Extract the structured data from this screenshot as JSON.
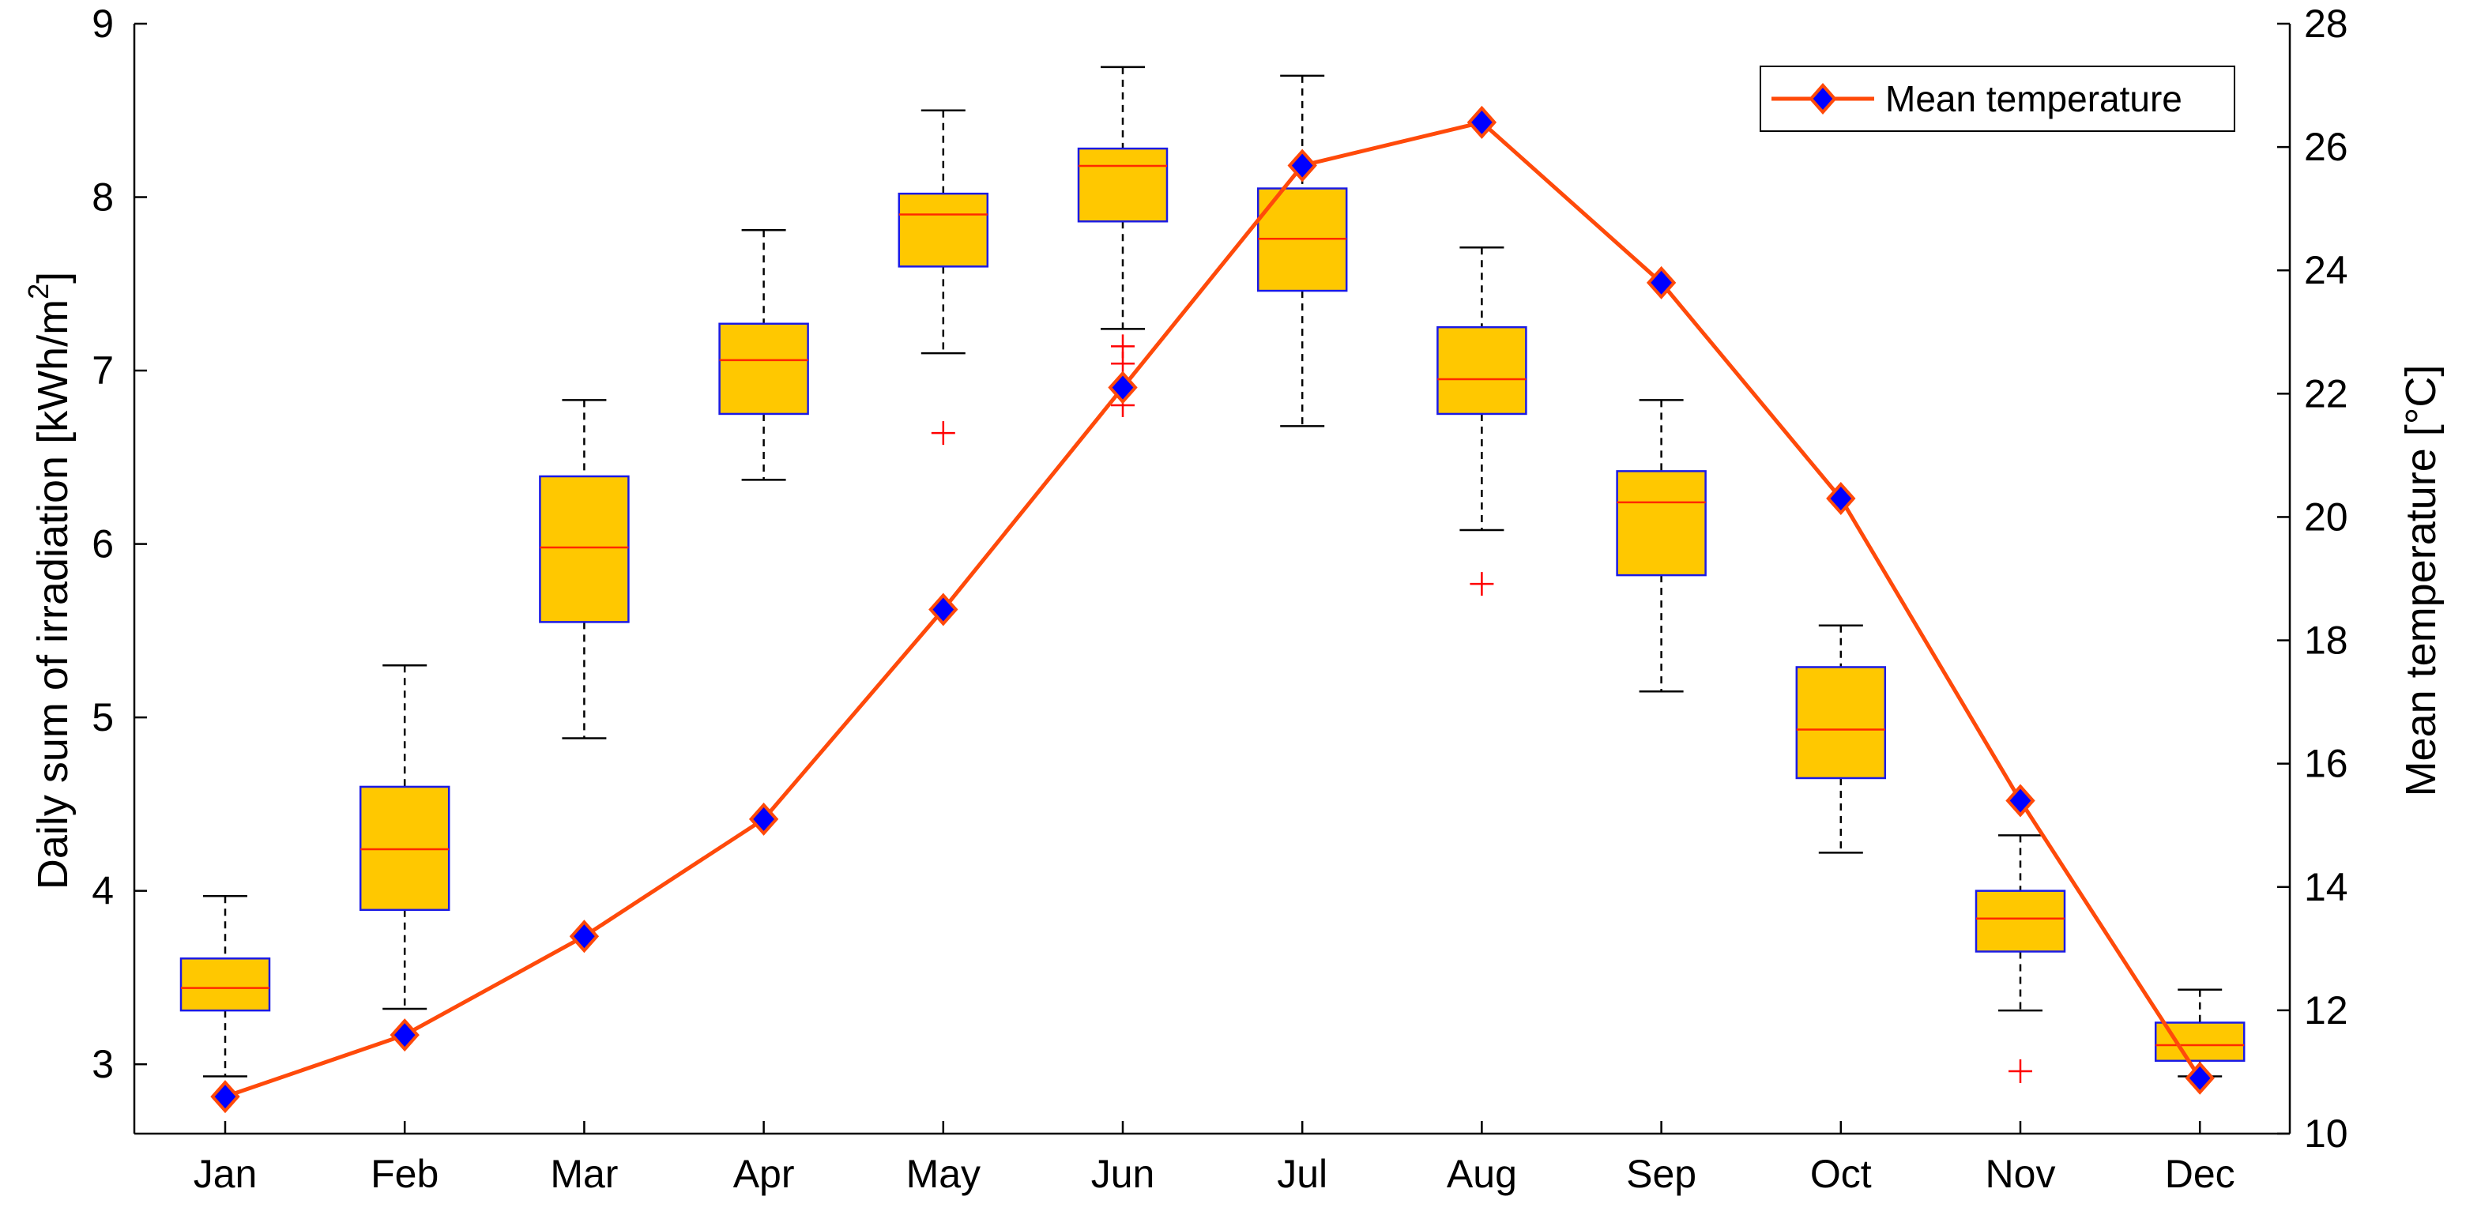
{
  "chart_data": {
    "type": "box+line",
    "categories": [
      "Jan",
      "Feb",
      "Mar",
      "Apr",
      "May",
      "Jun",
      "Jul",
      "Aug",
      "Sep",
      "Oct",
      "Nov",
      "Dec"
    ],
    "left_axis": {
      "label_prefix": "Daily sum of irradiation [kWh/m",
      "label_sup": "2",
      "label_suffix": "]",
      "ylim": [
        2.6,
        9.0
      ],
      "ticks": [
        3,
        4,
        5,
        6,
        7,
        8,
        9
      ]
    },
    "right_axis": {
      "label": "Mean temperature [°C]",
      "ylim": [
        10,
        28
      ],
      "ticks": [
        10,
        12,
        14,
        16,
        18,
        20,
        22,
        24,
        26,
        28
      ]
    },
    "boxes": [
      {
        "month": "Jan",
        "whisker_low": 2.93,
        "q1": 3.31,
        "median": 3.44,
        "q3": 3.61,
        "whisker_high": 3.97,
        "outliers": []
      },
      {
        "month": "Feb",
        "whisker_low": 3.32,
        "q1": 3.89,
        "median": 4.24,
        "q3": 4.6,
        "whisker_high": 5.3,
        "outliers": []
      },
      {
        "month": "Mar",
        "whisker_low": 4.88,
        "q1": 5.55,
        "median": 5.98,
        "q3": 6.39,
        "whisker_high": 6.83,
        "outliers": []
      },
      {
        "month": "Apr",
        "whisker_low": 6.37,
        "q1": 6.75,
        "median": 7.06,
        "q3": 7.27,
        "whisker_high": 7.81,
        "outliers": []
      },
      {
        "month": "May",
        "whisker_low": 7.1,
        "q1": 7.6,
        "median": 7.9,
        "q3": 8.02,
        "whisker_high": 8.5,
        "outliers": [
          6.64
        ]
      },
      {
        "month": "Jun",
        "whisker_low": 7.24,
        "q1": 7.86,
        "median": 8.18,
        "q3": 8.28,
        "whisker_high": 8.75,
        "outliers": [
          7.14,
          7.04,
          6.8
        ]
      },
      {
        "month": "Jul",
        "whisker_low": 6.68,
        "q1": 7.46,
        "median": 7.76,
        "q3": 8.05,
        "whisker_high": 8.7,
        "outliers": []
      },
      {
        "month": "Aug",
        "whisker_low": 6.08,
        "q1": 6.75,
        "median": 6.95,
        "q3": 7.25,
        "whisker_high": 7.71,
        "outliers": [
          5.77
        ]
      },
      {
        "month": "Sep",
        "whisker_low": 5.15,
        "q1": 5.82,
        "median": 6.24,
        "q3": 6.42,
        "whisker_high": 6.83,
        "outliers": []
      },
      {
        "month": "Oct",
        "whisker_low": 4.22,
        "q1": 4.65,
        "median": 4.93,
        "q3": 5.29,
        "whisker_high": 5.53,
        "outliers": []
      },
      {
        "month": "Nov",
        "whisker_low": 3.31,
        "q1": 3.65,
        "median": 3.84,
        "q3": 4.0,
        "whisker_high": 4.32,
        "outliers": [
          2.96
        ]
      },
      {
        "month": "Dec",
        "whisker_low": 2.93,
        "q1": 3.02,
        "median": 3.11,
        "q3": 3.24,
        "whisker_high": 3.43,
        "outliers": []
      }
    ],
    "series": [
      {
        "name": "Mean temperature",
        "axis": "right",
        "values": [
          10.6,
          11.6,
          13.2,
          15.1,
          18.5,
          22.1,
          25.7,
          26.4,
          23.8,
          20.3,
          15.4,
          10.9
        ]
      }
    ],
    "legend": {
      "label": "Mean temperature",
      "position": "top-right"
    },
    "colors": {
      "box_fill": "#FFC800",
      "box_edge": "#1A1AE6",
      "median": "#FF2A00",
      "whisker": "#000000",
      "outlier": "#FF0000",
      "line": "#FF4A0A",
      "marker_fill": "#0000FF",
      "marker_edge": "#FF4A0A"
    }
  }
}
